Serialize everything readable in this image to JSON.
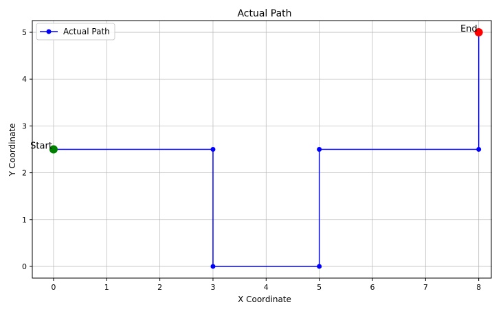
{
  "chart_data": {
    "type": "line",
    "title": "Actual Path",
    "xlabel": "X Coordinate",
    "ylabel": "Y Coordinate",
    "xlim": [
      -0.4,
      8.25
    ],
    "ylim": [
      -0.25,
      5.25
    ],
    "xticks": [
      0,
      1,
      2,
      3,
      4,
      5,
      6,
      7,
      8
    ],
    "yticks": [
      0,
      1,
      2,
      3,
      4,
      5
    ],
    "grid": true,
    "legend": {
      "position": "top-left"
    },
    "series": [
      {
        "name": "Actual Path",
        "color": "#0000ff",
        "marker": "circle",
        "x": [
          0,
          3,
          3,
          5,
          5,
          8,
          8
        ],
        "y": [
          2.5,
          2.5,
          0,
          0,
          2.5,
          2.5,
          5
        ]
      }
    ],
    "annotations": [
      {
        "text": "Start",
        "x": 0,
        "y": 2.5,
        "color": "#008000"
      },
      {
        "text": "End",
        "x": 8,
        "y": 5,
        "color": "#ff0000"
      }
    ]
  }
}
